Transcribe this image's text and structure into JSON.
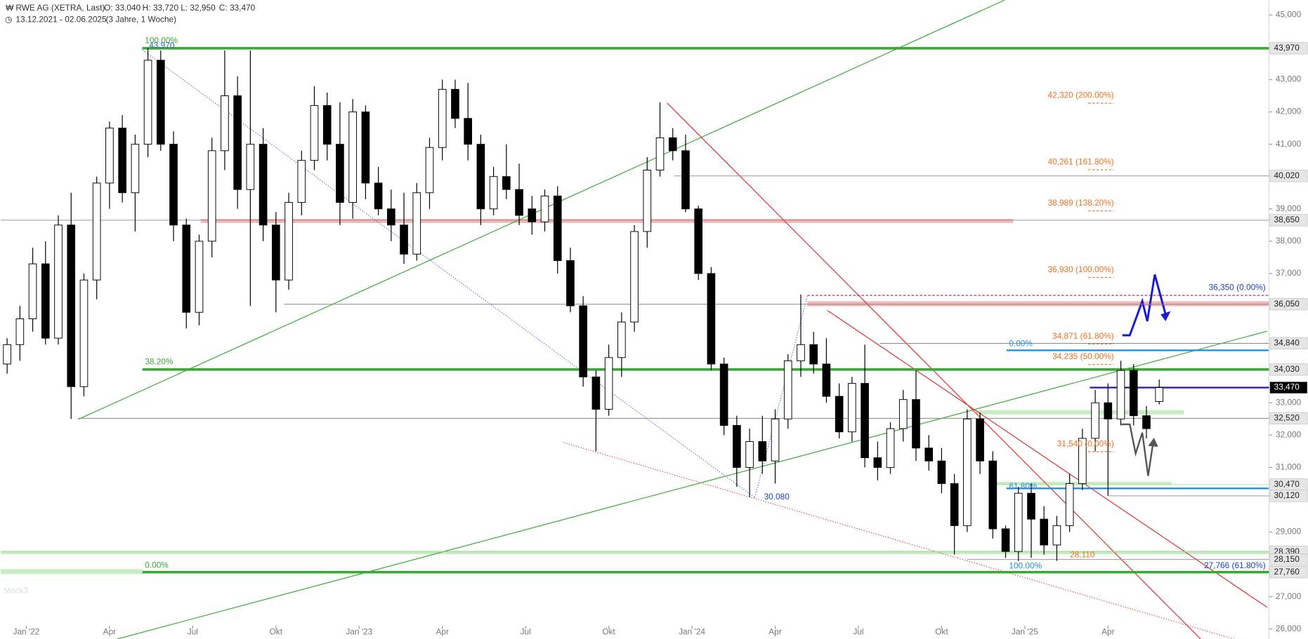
{
  "chart_data": {
    "type": "candlestick",
    "title": "RWE AG (XETRA, Last)",
    "quote": [
      "O: 33,040",
      "H: 33,720",
      "L: 32,950",
      "C: 33,470"
    ],
    "subtitle": "13.12.2021 - 02.06.2025",
    "period": "(3 Jahre, 1 Woche)",
    "watermark": "stock3",
    "up_color": "#ffffff",
    "down_color": "#000000",
    "xlim": [
      -0.5,
      90.5
    ],
    "xticks": [
      {
        "value": 1.5,
        "label": "Jan '22"
      },
      {
        "value": 8,
        "label": "Apr"
      },
      {
        "value": 14.5,
        "label": "Jul"
      },
      {
        "value": 21,
        "label": "Okt"
      },
      {
        "value": 27.5,
        "label": "Jan '23"
      },
      {
        "value": 34,
        "label": "Apr"
      },
      {
        "value": 40.5,
        "label": "Jul"
      },
      {
        "value": 47,
        "label": "Okt"
      },
      {
        "value": 53.5,
        "label": "Jan '24"
      },
      {
        "value": 60,
        "label": "Apr"
      },
      {
        "value": 66.5,
        "label": "Jul"
      },
      {
        "value": 73,
        "label": "Okt"
      },
      {
        "value": 79.5,
        "label": "Jan '25"
      },
      {
        "value": 86,
        "label": "Apr"
      }
    ],
    "ylim": [
      26,
      45
    ],
    "yticks": [
      {
        "value": 26,
        "label": "26,000"
      },
      {
        "value": 27,
        "label": "27,000"
      },
      {
        "value": 29,
        "label": "29,000"
      },
      {
        "value": 31,
        "label": "31,000"
      },
      {
        "value": 32,
        "label": "32,000"
      },
      {
        "value": 33,
        "label": "33,000"
      },
      {
        "value": 37,
        "label": "37,000"
      },
      {
        "value": 38,
        "label": "38,000"
      },
      {
        "value": 39,
        "label": "39,000"
      },
      {
        "value": 41,
        "label": "41,000"
      },
      {
        "value": 42,
        "label": "42,000"
      },
      {
        "value": 43,
        "label": "43,000"
      },
      {
        "value": 45,
        "label": "45,000"
      }
    ],
    "candles": [
      [
        34.2,
        35.0,
        33.9,
        34.8
      ],
      [
        34.8,
        36.0,
        34.3,
        35.6
      ],
      [
        35.6,
        37.8,
        35.2,
        37.3
      ],
      [
        37.3,
        38.0,
        34.8,
        35.0
      ],
      [
        35.0,
        38.8,
        34.8,
        38.5
      ],
      [
        38.5,
        39.5,
        32.5,
        33.5
      ],
      [
        33.5,
        37.0,
        33.2,
        36.8
      ],
      [
        36.8,
        40.0,
        36.2,
        39.8
      ],
      [
        39.8,
        41.7,
        39.0,
        41.5
      ],
      [
        41.5,
        41.9,
        39.2,
        39.5
      ],
      [
        39.5,
        41.3,
        38.3,
        41.0
      ],
      [
        41.0,
        43.97,
        40.6,
        43.6
      ],
      [
        43.6,
        43.9,
        40.8,
        41.0
      ],
      [
        41.0,
        41.4,
        38.0,
        38.5
      ],
      [
        38.5,
        38.7,
        35.3,
        35.8
      ],
      [
        35.8,
        38.2,
        35.4,
        38.0
      ],
      [
        38.0,
        41.2,
        37.5,
        40.8
      ],
      [
        40.8,
        43.9,
        40.2,
        42.5
      ],
      [
        42.5,
        43.1,
        39.0,
        39.6
      ],
      [
        39.6,
        43.9,
        36.0,
        41.0
      ],
      [
        41.0,
        41.5,
        38.0,
        38.5
      ],
      [
        38.5,
        38.9,
        35.8,
        36.8
      ],
      [
        36.8,
        39.5,
        36.5,
        39.2
      ],
      [
        39.2,
        40.8,
        38.8,
        40.5
      ],
      [
        40.5,
        42.8,
        40.2,
        42.2
      ],
      [
        42.2,
        42.6,
        40.5,
        41.0
      ],
      [
        41.0,
        42.3,
        38.5,
        39.2
      ],
      [
        39.2,
        42.4,
        38.7,
        42.0
      ],
      [
        42.0,
        42.2,
        39.3,
        39.8
      ],
      [
        39.8,
        40.3,
        38.8,
        39.0
      ],
      [
        39.0,
        39.6,
        38.0,
        38.5
      ],
      [
        38.5,
        39.5,
        37.3,
        37.6
      ],
      [
        37.6,
        39.8,
        37.4,
        39.5
      ],
      [
        39.5,
        41.2,
        39.0,
        40.9
      ],
      [
        40.9,
        43.0,
        40.5,
        42.7
      ],
      [
        42.7,
        43.0,
        41.5,
        41.8
      ],
      [
        41.8,
        42.9,
        40.5,
        41.0
      ],
      [
        41.0,
        41.3,
        38.5,
        39.0
      ],
      [
        39.0,
        40.3,
        38.8,
        40.0
      ],
      [
        40.0,
        41.0,
        39.3,
        39.6
      ],
      [
        39.6,
        40.4,
        38.5,
        38.8
      ],
      [
        39.0,
        39.4,
        38.2,
        38.6
      ],
      [
        38.6,
        39.6,
        38.3,
        39.4
      ],
      [
        39.4,
        39.7,
        37.0,
        37.4
      ],
      [
        37.4,
        37.8,
        35.8,
        36.0
      ],
      [
        36.0,
        36.3,
        33.5,
        33.8
      ],
      [
        33.8,
        34.0,
        31.5,
        32.8
      ],
      [
        32.8,
        34.8,
        32.6,
        34.4
      ],
      [
        34.4,
        35.8,
        33.8,
        35.5
      ],
      [
        35.5,
        38.5,
        35.2,
        38.3
      ],
      [
        38.3,
        40.6,
        37.8,
        40.2
      ],
      [
        40.2,
        42.3,
        40.0,
        41.2
      ],
      [
        41.2,
        41.5,
        40.5,
        40.8
      ],
      [
        40.8,
        41.3,
        38.9,
        39.0
      ],
      [
        39.0,
        39.1,
        36.8,
        37.0
      ],
      [
        37.0,
        37.2,
        34.0,
        34.2
      ],
      [
        34.2,
        34.4,
        32.0,
        32.3
      ],
      [
        32.3,
        32.6,
        30.4,
        31.0
      ],
      [
        31.0,
        32.2,
        30.08,
        31.8
      ],
      [
        31.8,
        32.6,
        30.8,
        31.2
      ],
      [
        31.2,
        32.8,
        30.5,
        32.5
      ],
      [
        32.5,
        34.5,
        32.2,
        34.3
      ],
      [
        34.3,
        36.35,
        33.8,
        34.8
      ],
      [
        34.8,
        35.2,
        33.9,
        34.2
      ],
      [
        34.2,
        35.0,
        33.0,
        33.2
      ],
      [
        33.2,
        33.6,
        31.9,
        32.1
      ],
      [
        32.1,
        33.8,
        31.8,
        33.6
      ],
      [
        33.6,
        34.8,
        31.0,
        31.3
      ],
      [
        31.3,
        31.8,
        30.6,
        31.0
      ],
      [
        31.0,
        32.4,
        30.8,
        32.2
      ],
      [
        32.2,
        33.4,
        31.8,
        33.1
      ],
      [
        33.1,
        34.0,
        31.2,
        31.6
      ],
      [
        31.6,
        32.0,
        30.9,
        31.2
      ],
      [
        31.2,
        31.6,
        30.2,
        30.5
      ],
      [
        30.5,
        30.8,
        28.3,
        29.2
      ],
      [
        29.2,
        32.8,
        29.0,
        32.5
      ],
      [
        32.5,
        32.7,
        30.8,
        31.2
      ],
      [
        31.2,
        31.5,
        28.8,
        29.1
      ],
      [
        29.1,
        29.2,
        28.2,
        28.4
      ],
      [
        28.4,
        30.4,
        28.1,
        30.2
      ],
      [
        30.2,
        30.5,
        28.2,
        29.4
      ],
      [
        29.4,
        29.8,
        28.3,
        28.6
      ],
      [
        28.6,
        29.5,
        28.11,
        29.2
      ],
      [
        29.2,
        30.8,
        29.0,
        30.5
      ],
      [
        30.5,
        32.2,
        30.3,
        31.9
      ],
      [
        31.9,
        33.4,
        31.5,
        33.0
      ],
      [
        33.0,
        33.6,
        30.12,
        32.5
      ],
      [
        32.5,
        34.3,
        32.3,
        34.0
      ],
      [
        34.0,
        34.2,
        32.3,
        32.6
      ],
      [
        32.6,
        32.9,
        31.9,
        32.2
      ],
      [
        33.04,
        33.72,
        32.95,
        33.47
      ]
    ],
    "levels": [
      {
        "value": 43.97,
        "label": "43,970",
        "color": "#3aaa35"
      },
      {
        "value": 40.02,
        "label": "40,020",
        "color": "#888888"
      },
      {
        "value": 38.65,
        "label": "38,650",
        "color": "#888888"
      },
      {
        "value": 36.05,
        "label": "36,050",
        "color": "#888888"
      },
      {
        "value": 34.84,
        "label": "34,840",
        "color": "#888888"
      },
      {
        "value": 34.03,
        "label": "34,030",
        "color": "#3aaa35"
      },
      {
        "value": 33.47,
        "label": "33,470",
        "color": "#3a1aa0"
      },
      {
        "value": 32.52,
        "label": "32,520",
        "color": "#888888"
      },
      {
        "value": 30.47,
        "label": "30,470",
        "color": "#a8dca0"
      },
      {
        "value": 30.12,
        "label": "30,120",
        "color": "#888888"
      },
      {
        "value": 28.39,
        "label": "28,390",
        "color": "#a8dca0"
      },
      {
        "value": 28.15,
        "label": "28,150",
        "color": "#888888"
      },
      {
        "value": 27.76,
        "label": "27,760",
        "color": "#3aaa35"
      }
    ],
    "annotations": [
      {
        "value": 43.97,
        "label": "100.00%",
        "color": "#3aaa35"
      },
      {
        "value": 43.97,
        "label": "43.970",
        "color": "#2a60d0"
      },
      {
        "value": 34.03,
        "label": "38.20%",
        "color": "#3aaa35"
      },
      {
        "value": 27.76,
        "label": "0.00%",
        "color": "#3aaa35"
      },
      {
        "value": 42.32,
        "label": "42,320 (200.00%)",
        "color": "#f07020"
      },
      {
        "value": 40.261,
        "label": "40,261 (161.80%)",
        "color": "#f07020"
      },
      {
        "value": 38.989,
        "label": "38,989 (138.20%)",
        "color": "#f07020"
      },
      {
        "value": 36.93,
        "label": "36,930 (100.00%)",
        "color": "#f07020"
      },
      {
        "value": 34.871,
        "label": "34,871 (61.80%)",
        "color": "#f07020"
      },
      {
        "value": 34.235,
        "label": "34,235 (50.00%)",
        "color": "#f07020"
      },
      {
        "value": 31.54,
        "label": "31,540 (0.00%)",
        "color": "#f07020"
      },
      {
        "value": 28.11,
        "label": "28,110",
        "color": "#f07020"
      },
      {
        "value": 36.35,
        "label": "36,350 (0.00%)",
        "color": "#1a3fd0"
      },
      {
        "value": 34.62,
        "label": "0.00%",
        "color": "#2090e0"
      },
      {
        "value": 30.2,
        "label": "61.80%",
        "color": "#2090e0"
      },
      {
        "value": 27.76,
        "label": "100.00%",
        "color": "#2090e0"
      },
      {
        "value": 27.766,
        "label": "27,766 (61.80%)",
        "color": "#1a3fd0"
      },
      {
        "value": 30.08,
        "label": "30.080",
        "color": "#1a3fd0"
      }
    ]
  }
}
